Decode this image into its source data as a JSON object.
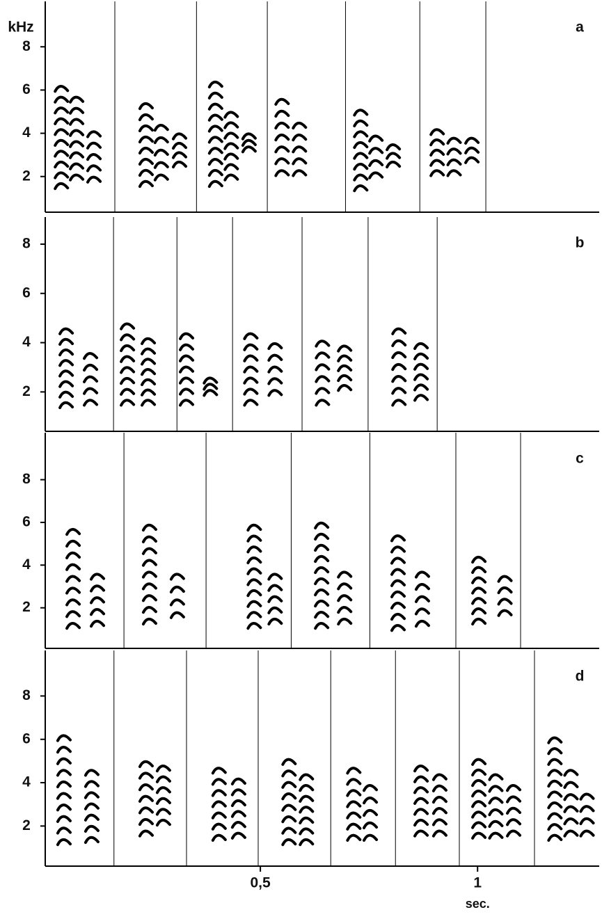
{
  "chart_data": [
    {
      "type": "spectrogram",
      "panel": "a",
      "ylabel": "kHz",
      "color": "#000",
      "xlim": [
        0,
        1.28
      ],
      "ylim": [
        0.35,
        10.1
      ],
      "yticks": [
        2,
        4,
        6,
        8
      ],
      "dividers": [
        0.165,
        0.353,
        0.516,
        0.696,
        0.867,
        1.019
      ],
      "syllables": {
        "time": [
          0.042,
          0.077,
          0.117,
          0.237,
          0.272,
          0.314,
          0.397,
          0.433,
          0.474,
          0.55,
          0.59,
          0.731,
          0.766,
          0.806,
          0.907,
          0.946,
          0.987
        ],
        "low": [
          1.6,
          2,
          1.9,
          1.7,
          2,
          2.6,
          1.7,
          2,
          3.3,
          2.2,
          2.2,
          1.5,
          2.1,
          2.6,
          2.2,
          2.2,
          2.8
        ],
        "high": [
          6.1,
          5.6,
          4,
          5.3,
          4.3,
          3.9,
          6.3,
          4.9,
          3.9,
          5.5,
          4.4,
          5,
          3.8,
          3.4,
          4.1,
          3.7,
          3.7
        ]
      }
    },
    {
      "type": "spectrogram",
      "panel": "b",
      "color": "#000",
      "xlim": [
        0,
        1.28
      ],
      "ylim": [
        0.4,
        9.1
      ],
      "yticks": [
        2,
        4,
        6,
        8
      ],
      "dividers": [
        0.162,
        0.308,
        0.436,
        0.596,
        0.748,
        0.907
      ],
      "syllables": {
        "time": [
          0.053,
          0.109,
          0.194,
          0.242,
          0.33,
          0.385,
          0.478,
          0.534,
          0.643,
          0.694,
          0.819,
          0.87
        ],
        "low": [
          1.5,
          1.6,
          1.6,
          1.6,
          1.6,
          2,
          1.6,
          2,
          1.6,
          2.2,
          1.6,
          1.8
        ],
        "high": [
          4.5,
          3.5,
          4.7,
          4.1,
          4.3,
          2.5,
          4.3,
          3.9,
          4,
          3.8,
          4.5,
          3.9
        ]
      }
    },
    {
      "type": "spectrogram",
      "panel": "c",
      "color": "#000",
      "xlim": [
        0,
        1.28
      ],
      "ylim": [
        0.1,
        10.2
      ],
      "yticks": [
        2,
        4,
        6,
        8
      ],
      "dividers": [
        0.186,
        0.375,
        0.571,
        0.752,
        0.95,
        1.099
      ],
      "syllables": {
        "time": [
          0.069,
          0.125,
          0.245,
          0.309,
          0.486,
          0.534,
          0.641,
          0.694,
          0.817,
          0.873,
          1.003,
          1.063
        ],
        "low": [
          1.2,
          1.3,
          1.4,
          1.7,
          1.2,
          1.4,
          1.2,
          1.4,
          1.1,
          1.3,
          1.4,
          1.8
        ],
        "high": [
          5.6,
          3.5,
          5.8,
          3.5,
          5.8,
          3.5,
          5.9,
          3.6,
          5.3,
          3.6,
          4.3,
          3.4
        ]
      }
    },
    {
      "type": "spectrogram",
      "panel": "d",
      "xlabel": "sec.",
      "color": "#000",
      "xlim": [
        0,
        1.28
      ],
      "ylim": [
        0.15,
        10.1
      ],
      "yticks": [
        2,
        4,
        6,
        8
      ],
      "xticks": [
        {
          "value": 0.5,
          "label": "0,5"
        },
        {
          "value": 1,
          "label": "1"
        }
      ],
      "dividers": [
        0.163,
        0.33,
        0.495,
        0.662,
        0.811,
        0.958,
        1.131
      ],
      "syllables": {
        "time": [
          0.048,
          0.112,
          0.237,
          0.277,
          0.405,
          0.45,
          0.566,
          0.606,
          0.715,
          0.753,
          0.87,
          0.913,
          1.003,
          1.042,
          1.083,
          1.178,
          1.215,
          1.252
        ],
        "low": [
          1.3,
          1.4,
          1.7,
          2.2,
          1.5,
          1.6,
          1.3,
          1.3,
          1.5,
          1.5,
          1.7,
          1.7,
          1.6,
          1.6,
          1.7,
          1.5,
          1.7,
          1.7
        ],
        "high": [
          6.1,
          4.5,
          4.9,
          4.7,
          4.6,
          4.1,
          5,
          4.3,
          4.6,
          3.8,
          4.7,
          4.3,
          5,
          4.3,
          3.8,
          6,
          4.5,
          3.4
        ]
      }
    }
  ]
}
